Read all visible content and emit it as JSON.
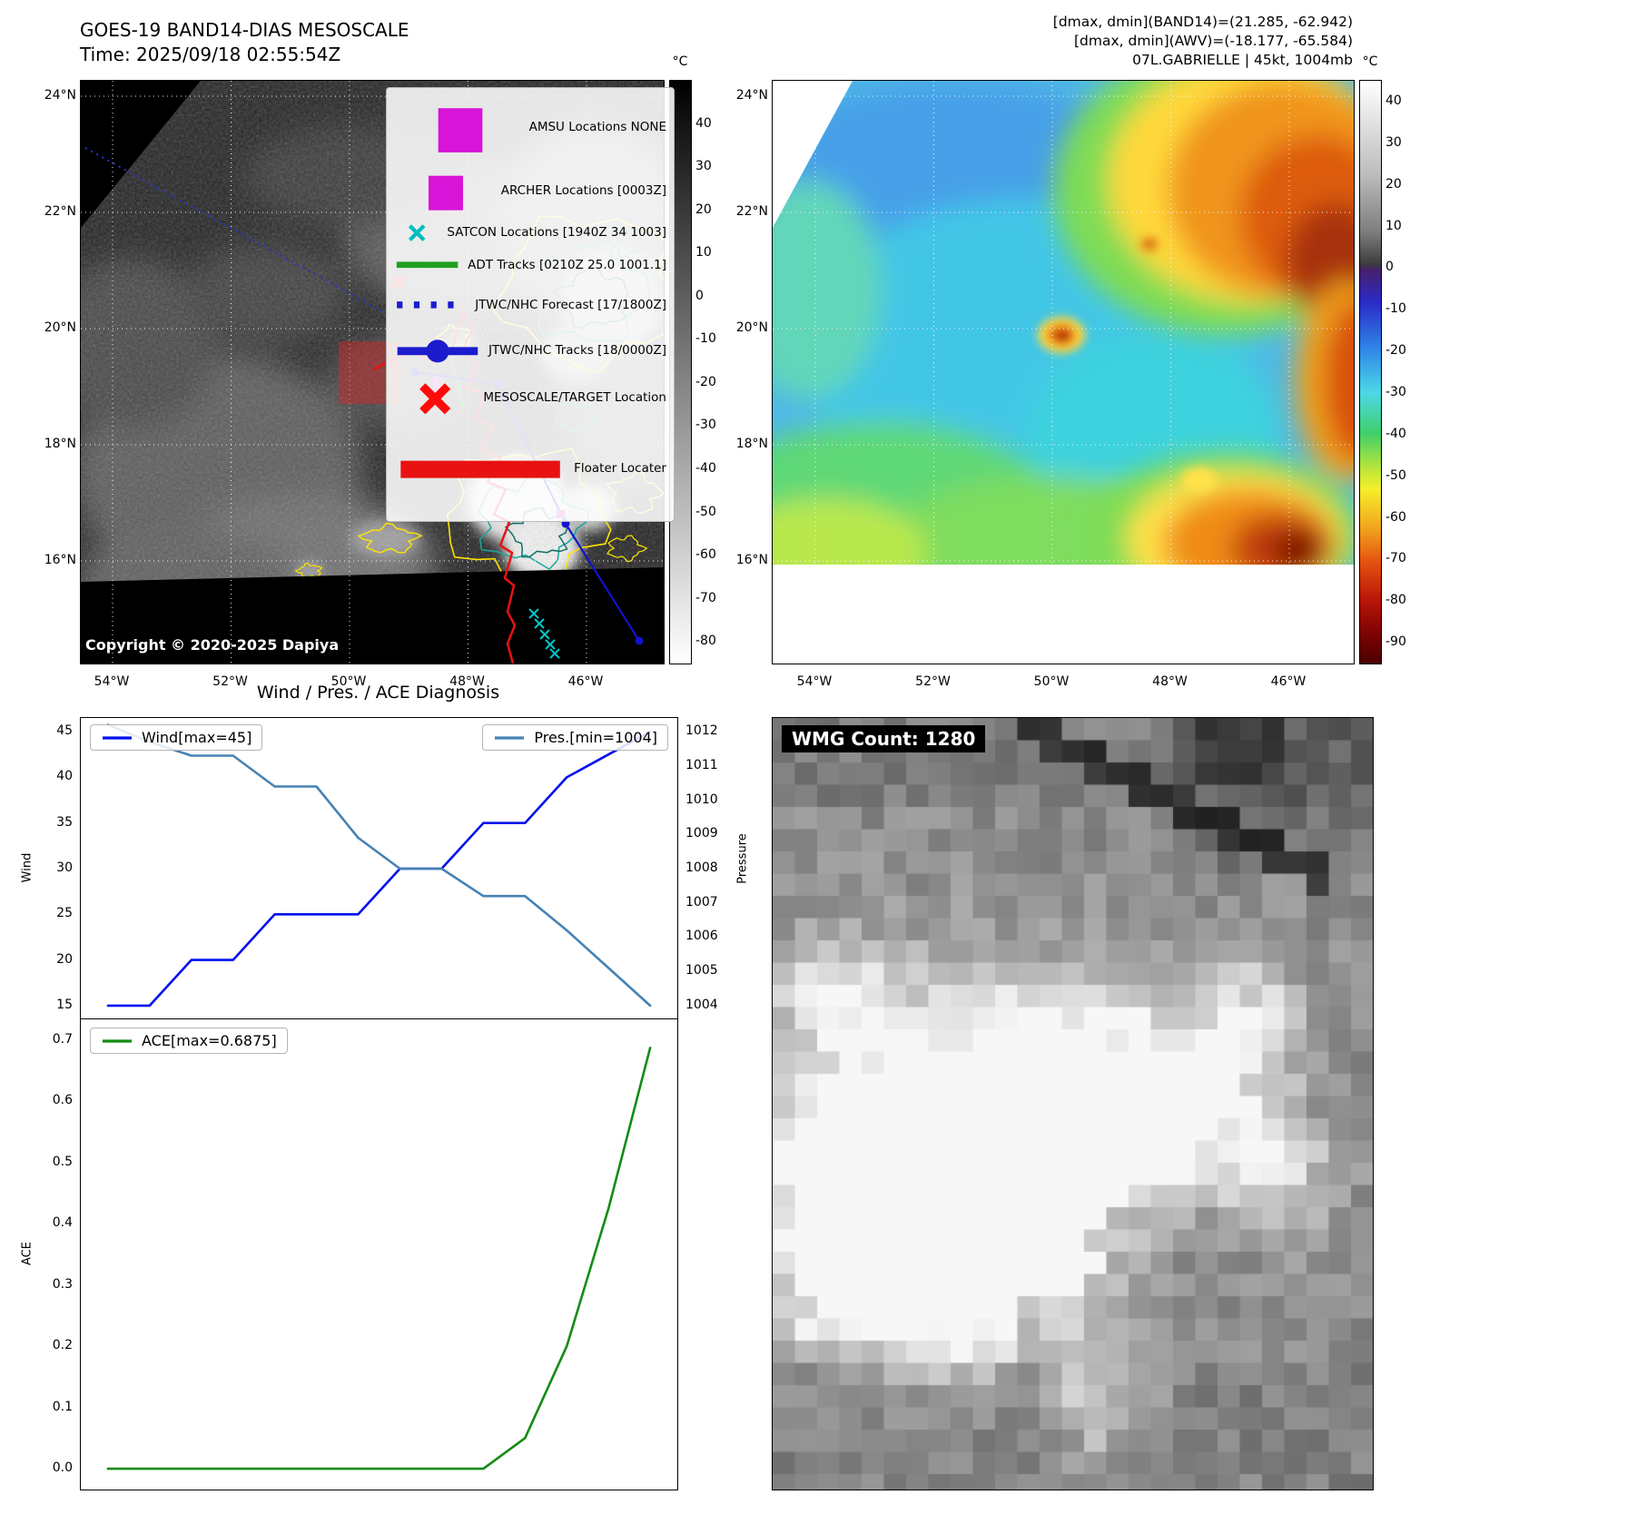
{
  "band14": {
    "title_line1": "GOES-19 BAND14-DIAS MESOSCALE",
    "title_line2": "Time: 2025/09/18 02:55:54Z",
    "copyright": "Copyright © 2020-2025 Dapiya",
    "legend": [
      {
        "marker": "amsu-square",
        "label": "AMSU Locations NONE"
      },
      {
        "marker": "archer-square",
        "label": "ARCHER Locations [0003Z]"
      },
      {
        "marker": "satcon-x",
        "label": "SATCON Locations [1940Z 34 1003]"
      },
      {
        "marker": "adt-line",
        "label": "ADT Tracks [0210Z 25.0 1001.1]"
      },
      {
        "marker": "forecast-dotted",
        "label": "JTWC/NHC Forecast [17/1800Z]"
      },
      {
        "marker": "track-line-dot",
        "label": "JTWC/NHC Tracks [18/0000Z]"
      },
      {
        "marker": "target-x",
        "label": "MESOSCALE/TARGET Location"
      },
      {
        "marker": "floater-line",
        "label": "Floater Locater"
      }
    ],
    "lat_ticks": [
      "24°N",
      "22°N",
      "20°N",
      "18°N",
      "16°N"
    ],
    "lon_ticks": [
      "54°W",
      "52°W",
      "50°W",
      "48°W",
      "46°W"
    ],
    "colorbar_unit": "°C",
    "colorbar_ticks": [
      "40",
      "30",
      "20",
      "10",
      "0",
      "-10",
      "-20",
      "-30",
      "-40",
      "-50",
      "-60",
      "-70",
      "-80"
    ]
  },
  "awv": {
    "header_line1": "[dmax, dmin](BAND14)=(21.285, -62.942)",
    "header_line2": "[dmax, dmin](AWV)=(-18.177, -65.584)",
    "header_line3": "07L.GABRIELLE | 45kt, 1004mb",
    "lat_ticks": [
      "24°N",
      "22°N",
      "20°N",
      "18°N",
      "16°N"
    ],
    "lon_ticks": [
      "54°W",
      "52°W",
      "50°W",
      "48°W",
      "46°W"
    ],
    "colorbar_unit": "°C",
    "colorbar_ticks": [
      "40",
      "30",
      "20",
      "10",
      "0",
      "-10",
      "-20",
      "-30",
      "-40",
      "-50",
      "-60",
      "-70",
      "-80",
      "-90"
    ]
  },
  "diagnosis": {
    "title": "Wind / Pres. / ACE Diagnosis"
  },
  "chart_data": [
    {
      "type": "line",
      "id": "wind-pressure",
      "title": "Wind / Pres. / ACE Diagnosis",
      "x": [
        0,
        1,
        2,
        3,
        4,
        5,
        6,
        7,
        8,
        9,
        10,
        11,
        12,
        13
      ],
      "series": [
        {
          "name": "Wind[max=45]",
          "color": "#0010ee",
          "axis": "left",
          "values": [
            15,
            15,
            20,
            20,
            25,
            25,
            25,
            30,
            30,
            35,
            35,
            40,
            42.5,
            45
          ]
        },
        {
          "name": "Pres.[min=1004]",
          "color": "#4682b4",
          "axis": "right",
          "values": [
            1012.2,
            1011.7,
            1011.3,
            1011.3,
            1010.4,
            1010.4,
            1008.9,
            1008,
            1008,
            1007.2,
            1007.2,
            1006.2,
            1005.1,
            1004
          ]
        }
      ],
      "left_axis": {
        "label": "Wind",
        "ticks": [
          "15",
          "20",
          "25",
          "30",
          "35",
          "40",
          "45"
        ],
        "range": [
          13.5,
          46.5
        ]
      },
      "right_axis": {
        "label": "Pressure",
        "ticks": [
          "1004",
          "1005",
          "1006",
          "1007",
          "1008",
          "1009",
          "1010",
          "1011",
          "1012"
        ],
        "range": [
          1003.6,
          1012.4
        ]
      },
      "grid": false,
      "legend_position": "upper-left and upper-right"
    },
    {
      "type": "line",
      "id": "ace",
      "x": [
        0,
        1,
        2,
        3,
        4,
        5,
        6,
        7,
        8,
        9,
        10,
        11,
        12,
        13
      ],
      "series": [
        {
          "name": "ACE[max=0.6875]",
          "color": "#128c12",
          "axis": "left",
          "values": [
            0,
            0,
            0,
            0,
            0,
            0,
            0,
            0,
            0,
            0,
            0.05,
            0.2,
            0.425,
            0.6875
          ]
        }
      ],
      "left_axis": {
        "label": "ACE",
        "ticks": [
          "0.0",
          "0.1",
          "0.2",
          "0.3",
          "0.4",
          "0.5",
          "0.6",
          "0.7"
        ],
        "range": [
          -0.034,
          0.734
        ]
      },
      "grid": false,
      "legend_position": "upper-left"
    }
  ],
  "wmg": {
    "label": "WMG Count: 1280"
  }
}
